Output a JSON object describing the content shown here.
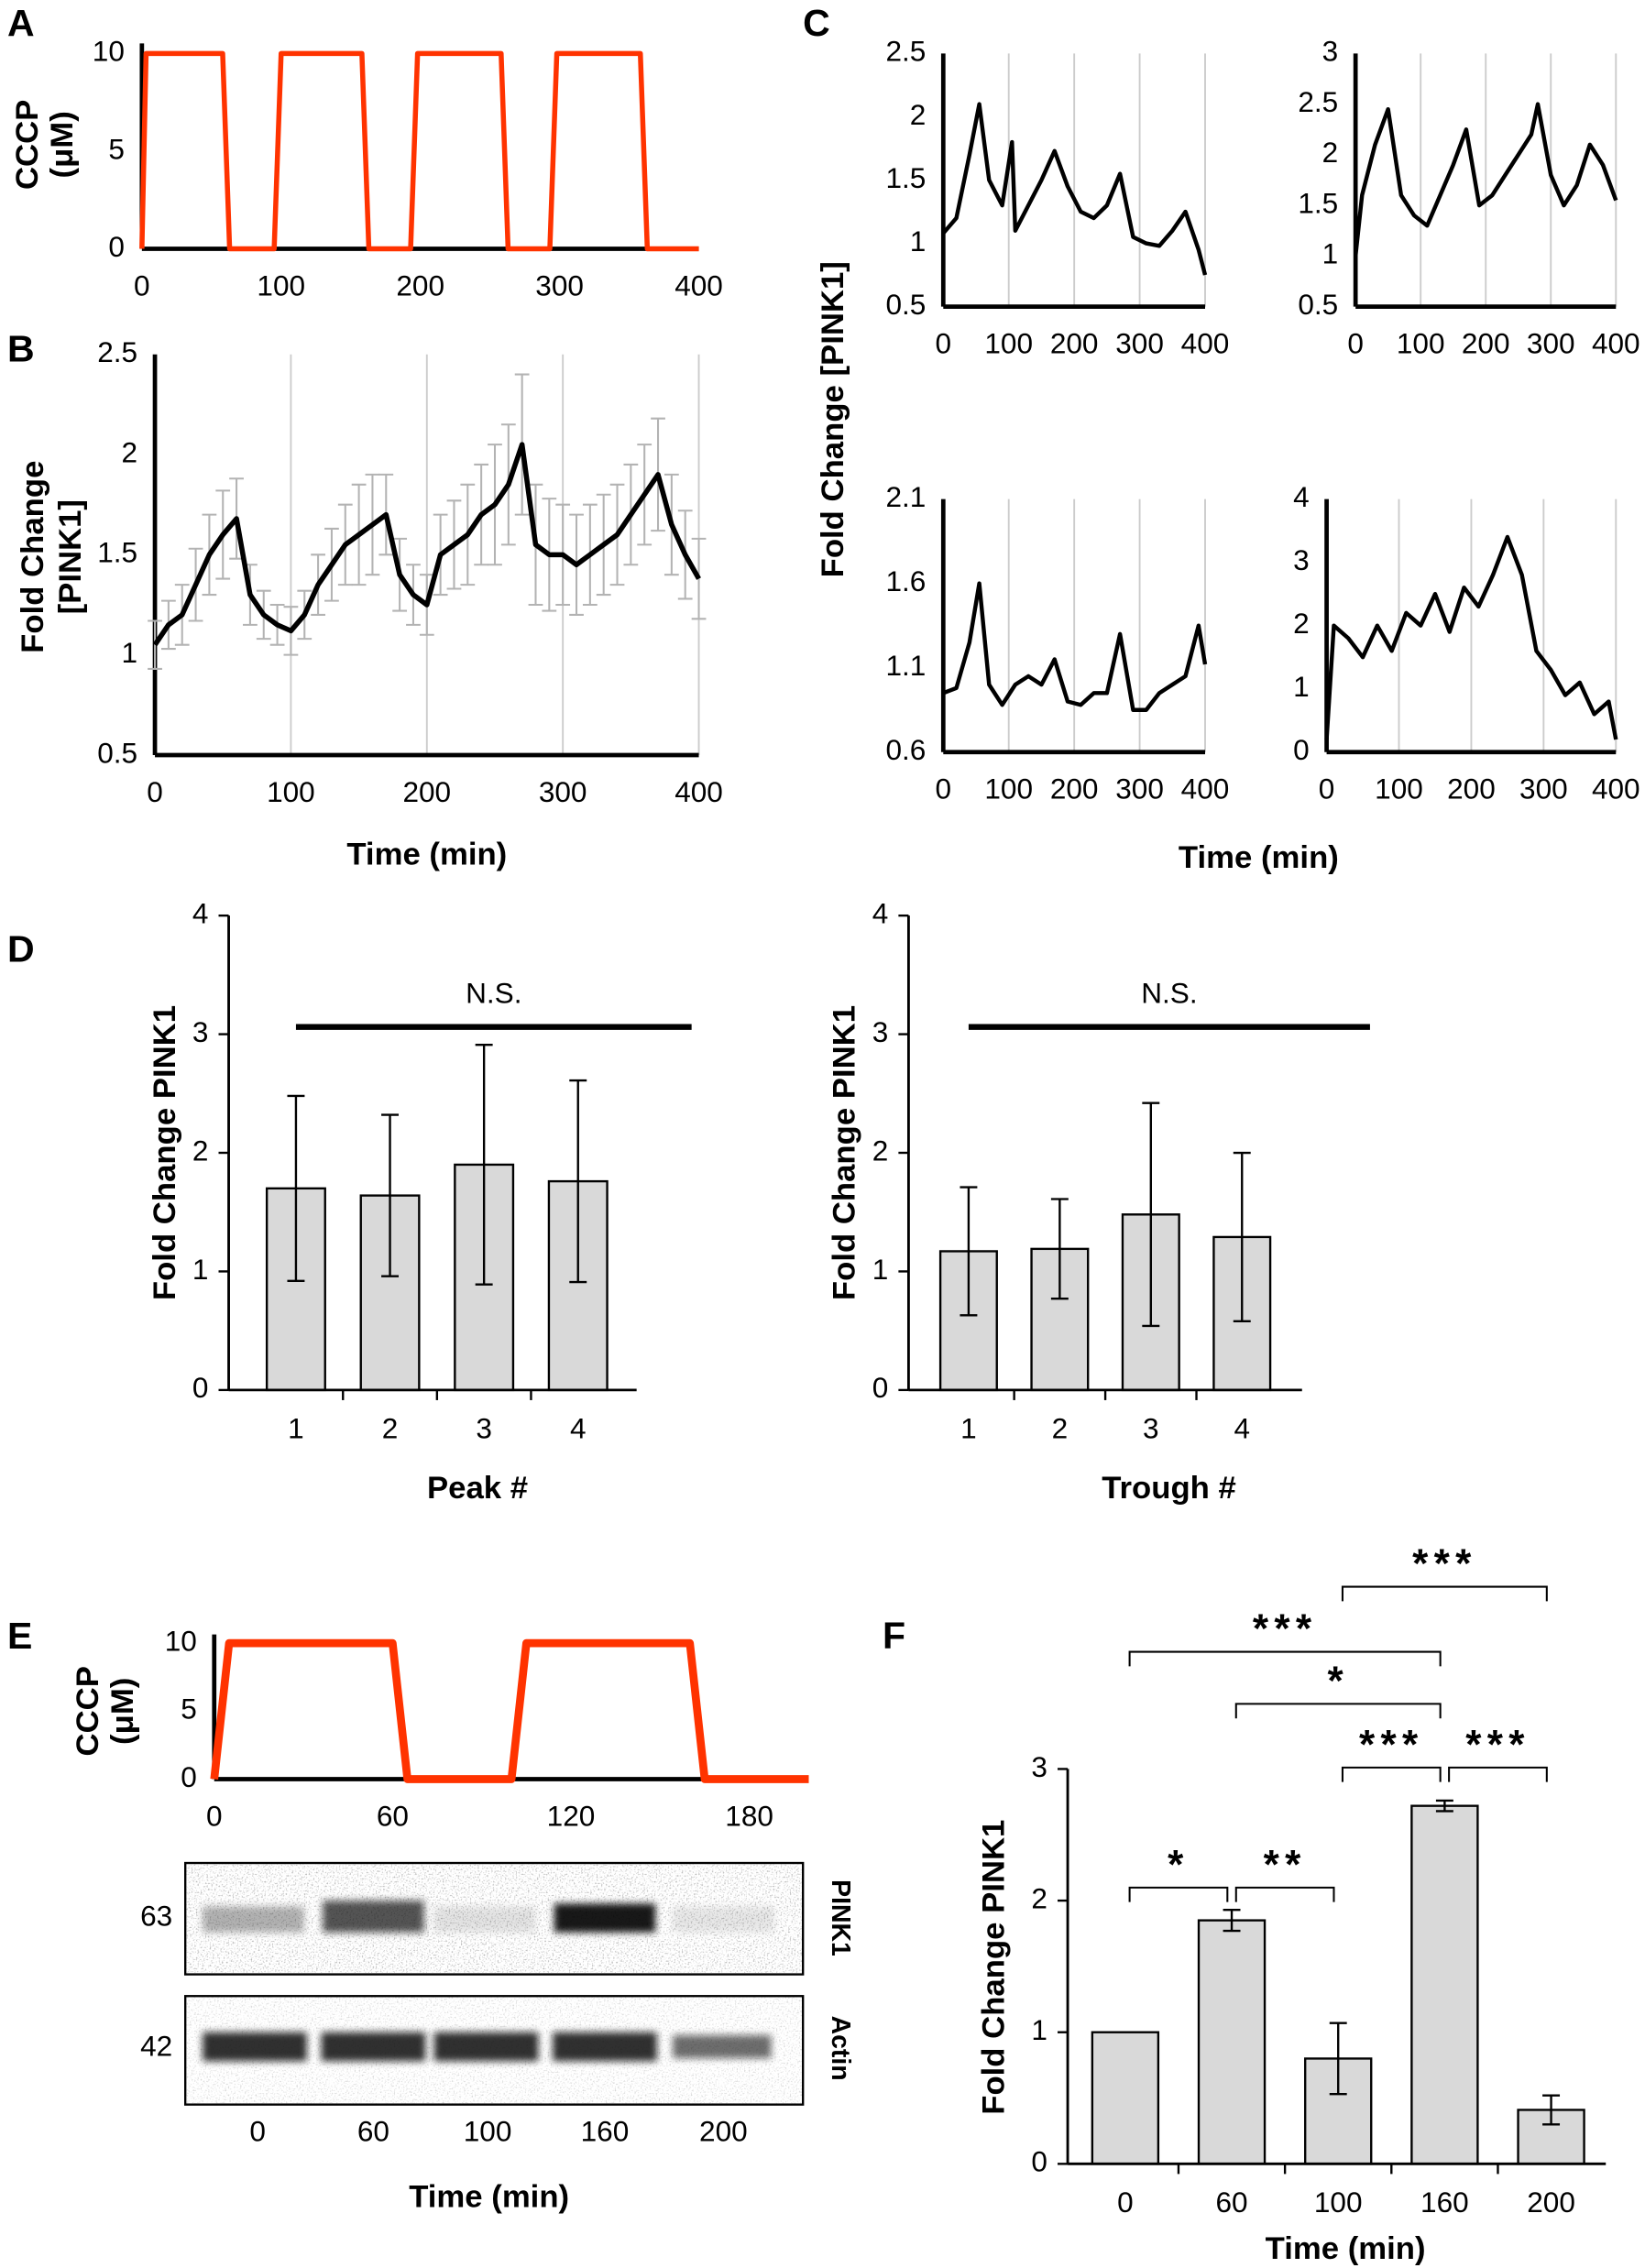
{
  "chart_data": [
    {
      "panel": "A",
      "type": "line",
      "ylabel": [
        "CCCP",
        "(μM)"
      ],
      "xlim": [
        0,
        400
      ],
      "xticks": [
        0,
        100,
        200,
        300,
        400
      ],
      "ylim": [
        0,
        10
      ],
      "yticks": [
        0,
        5,
        10
      ],
      "grid": false,
      "series": [
        {
          "color": "#ff3300",
          "x": [
            0,
            3,
            58,
            63,
            95,
            100,
            158,
            163,
            193,
            198,
            258,
            263,
            293,
            298,
            358,
            363,
            400
          ],
          "values": [
            0,
            10,
            10,
            0,
            0,
            10,
            10,
            0,
            0,
            10,
            10,
            0,
            0,
            10,
            10,
            0,
            0
          ]
        }
      ]
    },
    {
      "panel": "B",
      "type": "line",
      "ylabel": [
        "Fold Change",
        "[PINK1]"
      ],
      "xlabel": "Time (min)",
      "xlim": [
        0,
        400
      ],
      "xticks": [
        0,
        100,
        200,
        300,
        400
      ],
      "ylim": [
        0.5,
        2.5
      ],
      "yticks": [
        0.5,
        1,
        1.5,
        2,
        2.5
      ],
      "grid": true,
      "series": [
        {
          "color": "#000000",
          "error_color": "#b3b3b3",
          "x": [
            0,
            10,
            20,
            30,
            40,
            50,
            60,
            70,
            80,
            90,
            100,
            110,
            120,
            130,
            140,
            150,
            160,
            170,
            180,
            190,
            200,
            210,
            220,
            230,
            240,
            250,
            260,
            270,
            280,
            290,
            300,
            310,
            320,
            330,
            340,
            350,
            360,
            370,
            380,
            390,
            400
          ],
          "values": [
            1.05,
            1.15,
            1.2,
            1.35,
            1.5,
            1.6,
            1.68,
            1.3,
            1.2,
            1.15,
            1.12,
            1.2,
            1.35,
            1.45,
            1.55,
            1.6,
            1.65,
            1.7,
            1.4,
            1.3,
            1.25,
            1.5,
            1.55,
            1.6,
            1.7,
            1.75,
            1.85,
            2.05,
            1.55,
            1.5,
            1.5,
            1.45,
            1.5,
            1.55,
            1.6,
            1.7,
            1.8,
            1.9,
            1.65,
            1.5,
            1.38
          ],
          "errors": [
            0.12,
            0.12,
            0.15,
            0.18,
            0.2,
            0.22,
            0.2,
            0.15,
            0.12,
            0.1,
            0.12,
            0.12,
            0.15,
            0.18,
            0.2,
            0.25,
            0.25,
            0.2,
            0.18,
            0.15,
            0.15,
            0.2,
            0.22,
            0.25,
            0.25,
            0.3,
            0.3,
            0.35,
            0.3,
            0.28,
            0.25,
            0.25,
            0.25,
            0.25,
            0.25,
            0.25,
            0.25,
            0.28,
            0.25,
            0.22,
            0.2
          ]
        }
      ]
    },
    {
      "panel": "C",
      "type": "line",
      "ylabel": "Fold Change [PINK1]",
      "xlabel": "Time (min)",
      "grid": true,
      "subplots": [
        {
          "xlim": [
            0,
            400
          ],
          "xticks": [
            0,
            100,
            200,
            300,
            400
          ],
          "ylim": [
            0.5,
            2.5
          ],
          "yticks": [
            0.5,
            1,
            1.5,
            2,
            2.5
          ],
          "series": [
            {
              "color": "#000000",
              "x": [
                0,
                20,
                40,
                55,
                70,
                90,
                105,
                110,
                130,
                150,
                170,
                190,
                210,
                230,
                250,
                270,
                290,
                310,
                330,
                350,
                370,
                390,
                400
              ],
              "values": [
                1.08,
                1.2,
                1.7,
                2.1,
                1.5,
                1.3,
                1.8,
                1.1,
                1.3,
                1.5,
                1.73,
                1.45,
                1.25,
                1.2,
                1.3,
                1.55,
                1.05,
                1.0,
                0.98,
                1.1,
                1.25,
                0.95,
                0.75
              ]
            }
          ]
        },
        {
          "xlim": [
            0,
            400
          ],
          "xticks": [
            0,
            100,
            200,
            300,
            400
          ],
          "ylim": [
            0.5,
            3
          ],
          "yticks": [
            0.5,
            1,
            1.5,
            2,
            2.5,
            3
          ],
          "series": [
            {
              "color": "#000000",
              "x": [
                0,
                10,
                30,
                50,
                70,
                90,
                110,
                130,
                150,
                170,
                190,
                210,
                230,
                250,
                270,
                280,
                300,
                320,
                340,
                360,
                380,
                400
              ],
              "values": [
                1.0,
                1.6,
                2.1,
                2.45,
                1.6,
                1.4,
                1.3,
                1.6,
                1.9,
                2.25,
                1.5,
                1.6,
                1.8,
                2.0,
                2.2,
                2.5,
                1.8,
                1.5,
                1.7,
                2.1,
                1.9,
                1.55
              ]
            }
          ]
        },
        {
          "xlim": [
            0,
            400
          ],
          "xticks": [
            0,
            100,
            200,
            300,
            400
          ],
          "ylim": [
            0.6,
            2.1
          ],
          "yticks": [
            0.6,
            1.1,
            1.6,
            2.1
          ],
          "series": [
            {
              "color": "#000000",
              "x": [
                0,
                20,
                40,
                55,
                70,
                90,
                110,
                130,
                150,
                170,
                190,
                210,
                230,
                250,
                270,
                290,
                310,
                330,
                350,
                370,
                390,
                400
              ],
              "values": [
                0.95,
                0.98,
                1.25,
                1.6,
                1.0,
                0.88,
                1.0,
                1.05,
                1.0,
                1.15,
                0.9,
                0.88,
                0.95,
                0.95,
                1.3,
                0.85,
                0.85,
                0.95,
                1.0,
                1.05,
                1.35,
                1.12
              ]
            }
          ]
        },
        {
          "xlim": [
            0,
            400
          ],
          "xticks": [
            0,
            100,
            200,
            300,
            400
          ],
          "ylim": [
            0,
            4
          ],
          "yticks": [
            0,
            1,
            2,
            3,
            4
          ],
          "series": [
            {
              "color": "#000000",
              "x": [
                0,
                10,
                30,
                50,
                70,
                90,
                110,
                130,
                150,
                170,
                190,
                210,
                230,
                250,
                270,
                290,
                310,
                330,
                350,
                370,
                390,
                400
              ],
              "values": [
                0.2,
                2.0,
                1.8,
                1.5,
                2.0,
                1.6,
                2.2,
                2.0,
                2.5,
                1.9,
                2.6,
                2.3,
                2.8,
                3.4,
                2.8,
                1.6,
                1.3,
                0.9,
                1.1,
                0.6,
                0.8,
                0.2
              ]
            }
          ]
        }
      ]
    },
    {
      "panel": "D",
      "type": "bar",
      "ylabel": "Fold Change PINK1",
      "xlabel": "Peak #",
      "categories": [
        "1",
        "2",
        "3",
        "4"
      ],
      "values": [
        1.7,
        1.64,
        1.9,
        1.76
      ],
      "errors": [
        0.78,
        0.68,
        1.01,
        0.85
      ],
      "color": "#d9d9d9",
      "ylim": [
        0,
        4
      ],
      "yticks": [
        0,
        1,
        2,
        3,
        4
      ],
      "annotation": "N.S."
    },
    {
      "type": "bar",
      "ylabel": "Fold Change PINK1",
      "xlabel": "Trough #",
      "categories": [
        "1",
        "2",
        "3",
        "4"
      ],
      "values": [
        1.17,
        1.19,
        1.48,
        1.29
      ],
      "errors": [
        0.54,
        0.42,
        0.94,
        0.71
      ],
      "color": "#d9d9d9",
      "ylim": [
        0,
        4
      ],
      "yticks": [
        0,
        1,
        2,
        3,
        4
      ],
      "annotation": "N.S."
    },
    {
      "panel": "E",
      "type": "line",
      "ylabel": [
        "CCCP",
        "(μM)"
      ],
      "xlim": [
        0,
        200
      ],
      "xticks": [
        0,
        60,
        120,
        180
      ],
      "ylim": [
        0,
        10
      ],
      "yticks": [
        0,
        5,
        10
      ],
      "grid": false,
      "series": [
        {
          "color": "#ff3300",
          "x": [
            0,
            5,
            60,
            65,
            100,
            105,
            160,
            165,
            200
          ],
          "values": [
            0,
            10,
            10,
            0,
            0,
            10,
            10,
            0,
            0
          ]
        }
      ]
    },
    {
      "panel": "F",
      "type": "bar",
      "ylabel": "Fold Change PINK1",
      "xlabel": "Time (min)",
      "categories": [
        "0",
        "60",
        "100",
        "160",
        "200"
      ],
      "values": [
        1,
        1.85,
        0.8,
        2.72,
        0.41
      ],
      "errors": [
        null,
        0.08,
        0.27,
        0.04,
        0.11
      ],
      "color": "#d9d9d9",
      "ylim": [
        0,
        3
      ],
      "yticks": [
        0,
        1,
        2,
        3
      ],
      "annotations": [
        {
          "text": "*",
          "between": [
            "0",
            "60"
          ]
        },
        {
          "text": "**",
          "between": [
            "60",
            "100"
          ]
        },
        {
          "text": "***",
          "between": [
            "100",
            "160"
          ]
        },
        {
          "text": "***",
          "between": [
            "160",
            "200"
          ]
        },
        {
          "text": "*",
          "between": [
            "60",
            "160"
          ]
        },
        {
          "text": "***",
          "between": [
            "0",
            "160"
          ]
        },
        {
          "text": "***",
          "between": [
            "100",
            "200"
          ]
        }
      ]
    }
  ],
  "blot": {
    "markers": [
      "63",
      "42"
    ],
    "proteins": [
      "PINK1",
      "Actin"
    ],
    "lanes": [
      "0",
      "60",
      "100",
      "160",
      "200"
    ],
    "xlabel": "Time (min)"
  }
}
